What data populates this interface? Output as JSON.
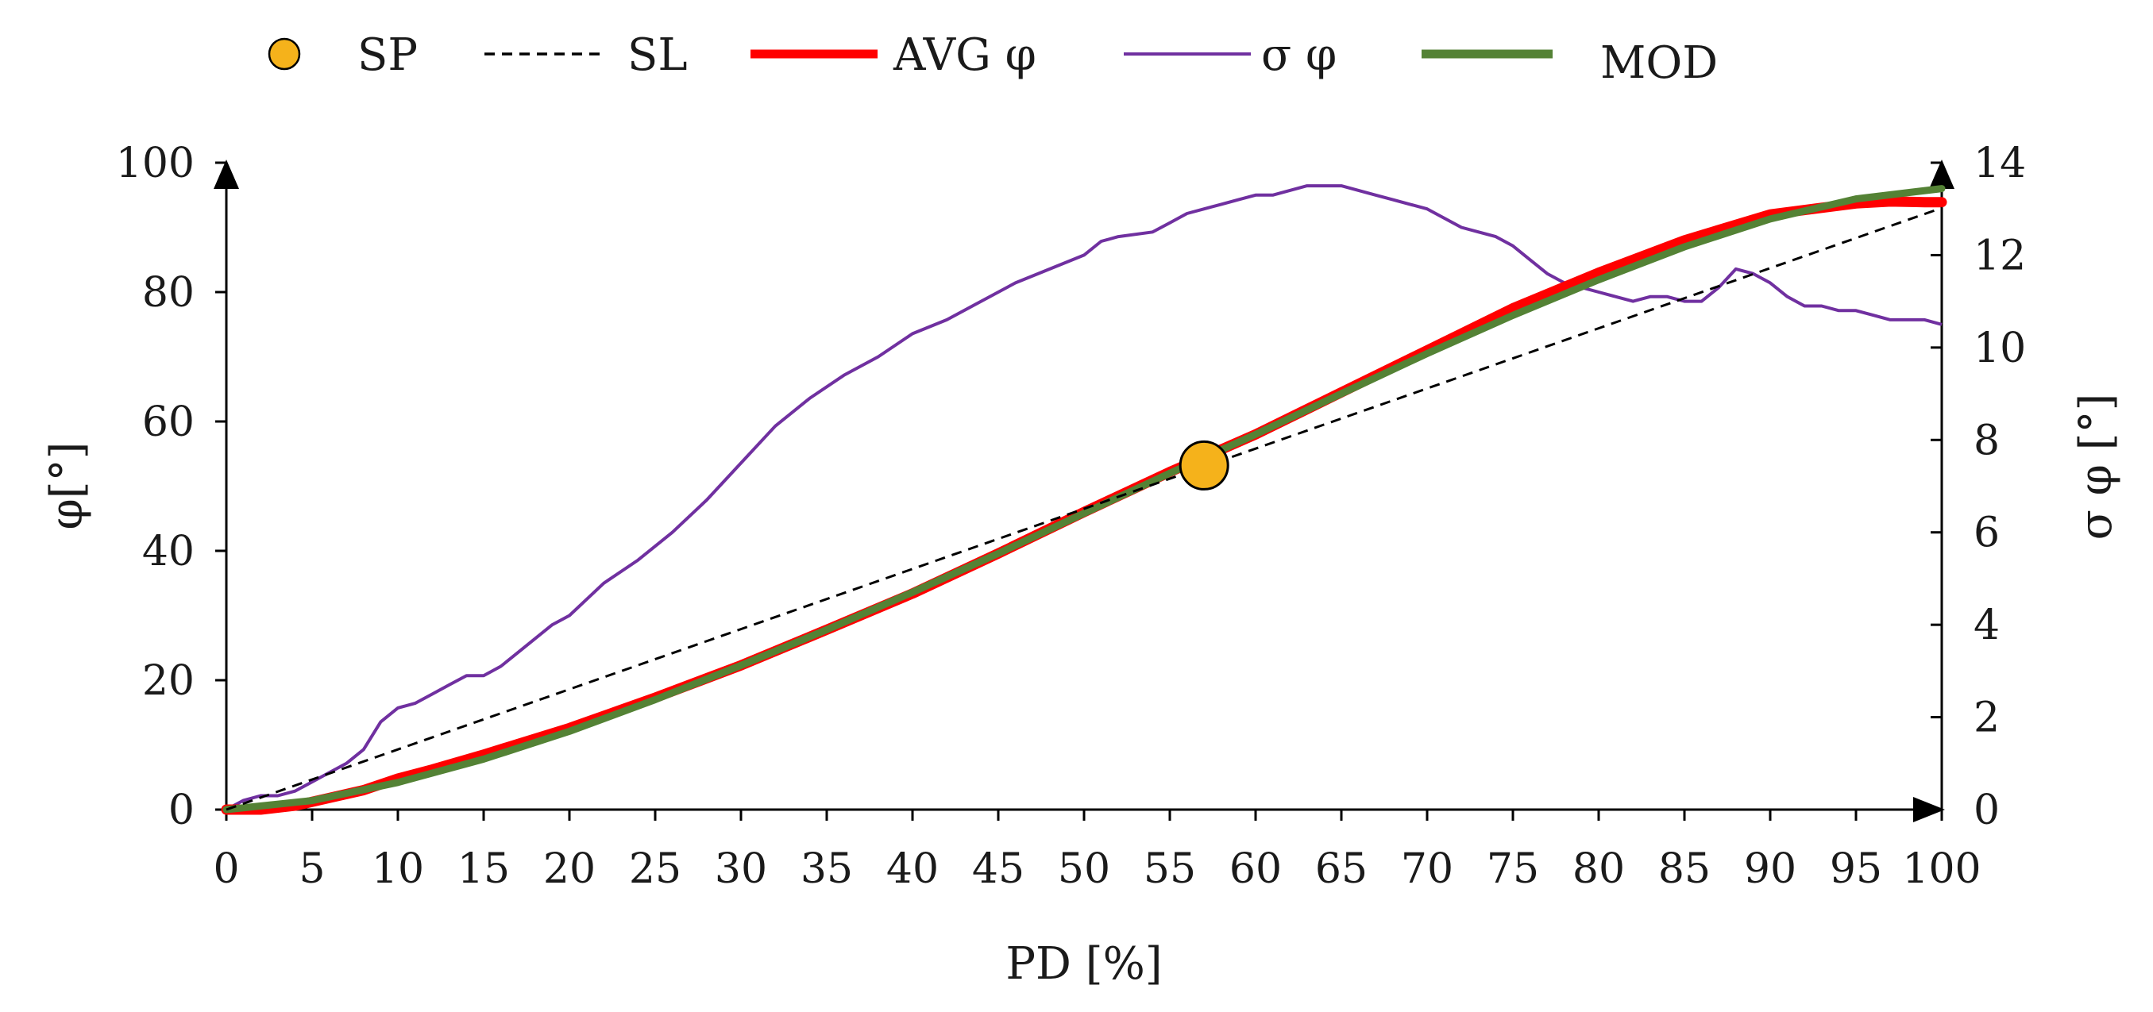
{
  "chart_data": {
    "type": "line",
    "title": "",
    "xlabel": "PD [%]",
    "ylabel": "φ[°]",
    "y2label": "σ φ [°]",
    "xlim": [
      0,
      100
    ],
    "ylim": [
      0,
      100
    ],
    "y2lim": [
      0,
      14
    ],
    "x_ticks": [
      "0",
      "5",
      "10",
      "15",
      "20",
      "25",
      "30",
      "35",
      "40",
      "45",
      "50",
      "55",
      "60",
      "65",
      "70",
      "75",
      "80",
      "85",
      "90",
      "95",
      "100"
    ],
    "y_ticks": [
      "0",
      "20",
      "40",
      "60",
      "80",
      "100"
    ],
    "y2_ticks": [
      "0",
      "2",
      "4",
      "6",
      "8",
      "10",
      "12",
      "14"
    ],
    "grid": false,
    "legend_position": "top",
    "legend": [
      {
        "key": "sp",
        "label": "SP",
        "style": "marker",
        "color": "#f5b21b"
      },
      {
        "key": "sl",
        "label": "SL",
        "style": "dashed",
        "color": "#000000"
      },
      {
        "key": "avg",
        "label": "AVG φ",
        "style": "thick-line",
        "color": "#ff0000"
      },
      {
        "key": "sigma",
        "label": "σ φ",
        "style": "thin-line",
        "color": "#7030a0"
      },
      {
        "key": "mod",
        "label": "MOD",
        "style": "thick-line",
        "color": "#548235"
      }
    ],
    "series": [
      {
        "name": "SP",
        "axis": "left",
        "x": [
          57
        ],
        "values": [
          53.2
        ]
      },
      {
        "name": "SL",
        "axis": "left",
        "x": [
          0,
          100
        ],
        "values": [
          0,
          93
        ]
      },
      {
        "name": "AVG φ",
        "axis": "left",
        "x": [
          0,
          2,
          4,
          6,
          8,
          10,
          12,
          15,
          20,
          25,
          30,
          35,
          40,
          45,
          50,
          55,
          57,
          60,
          65,
          70,
          75,
          80,
          85,
          90,
          95,
          97,
          99,
          100
        ],
        "values": [
          0,
          0,
          0.6,
          1.8,
          3,
          4.8,
          6.2,
          8.5,
          12.6,
          17.3,
          22.3,
          27.8,
          33.4,
          39.6,
          46,
          52.2,
          54.5,
          58,
          64.5,
          71,
          77.5,
          83,
          88,
          92,
          93.7,
          94,
          93.9,
          93.9
        ]
      },
      {
        "name": "σ φ",
        "axis": "right",
        "x": [
          0,
          1,
          2,
          3,
          4,
          5,
          6,
          7,
          8,
          9,
          10,
          11,
          12,
          13,
          14,
          15,
          16,
          17,
          18,
          19,
          20,
          22,
          24,
          26,
          28,
          30,
          32,
          34,
          36,
          38,
          40,
          42,
          44,
          46,
          48,
          50,
          51,
          52,
          54,
          55,
          56,
          57,
          58,
          59,
          60,
          61,
          62,
          63,
          64,
          65,
          66,
          67,
          68,
          69,
          70,
          71,
          72,
          73,
          74,
          75,
          76,
          77,
          78,
          79,
          80,
          81,
          82,
          83,
          84,
          85,
          86,
          87,
          88,
          89,
          90,
          91,
          92,
          93,
          94,
          95,
          96,
          97,
          98,
          99,
          100
        ],
        "values": [
          0,
          0.2,
          0.3,
          0.3,
          0.4,
          0.6,
          0.8,
          1,
          1.3,
          1.9,
          2.2,
          2.3,
          2.5,
          2.7,
          2.9,
          2.9,
          3.1,
          3.4,
          3.7,
          4,
          4.2,
          4.9,
          5.4,
          6,
          6.7,
          7.5,
          8.3,
          8.9,
          9.4,
          9.8,
          10.3,
          10.6,
          11,
          11.4,
          11.7,
          12,
          12.3,
          12.4,
          12.5,
          12.7,
          12.9,
          13,
          13.1,
          13.2,
          13.3,
          13.3,
          13.4,
          13.5,
          13.5,
          13.5,
          13.4,
          13.3,
          13.2,
          13.1,
          13,
          12.8,
          12.6,
          12.5,
          12.4,
          12.2,
          11.9,
          11.6,
          11.4,
          11.3,
          11.2,
          11.1,
          11.0,
          11.1,
          11.1,
          11.0,
          11.0,
          11.3,
          11.7,
          11.6,
          11.4,
          11.1,
          10.9,
          10.9,
          10.8,
          10.8,
          10.7,
          10.6,
          10.6,
          10.6,
          10.5
        ]
      },
      {
        "name": "MOD",
        "axis": "left",
        "x": [
          0,
          5,
          10,
          15,
          20,
          25,
          30,
          35,
          40,
          45,
          50,
          55,
          57,
          60,
          65,
          70,
          75,
          80,
          85,
          90,
          95,
          100
        ],
        "values": [
          0,
          1.4,
          4.2,
          7.8,
          12.1,
          17,
          22.3,
          27.8,
          33.6,
          39.6,
          45.8,
          52,
          54.4,
          58,
          64.3,
          70.5,
          76.4,
          81.9,
          87,
          91.3,
          94.4,
          96
        ]
      }
    ]
  }
}
